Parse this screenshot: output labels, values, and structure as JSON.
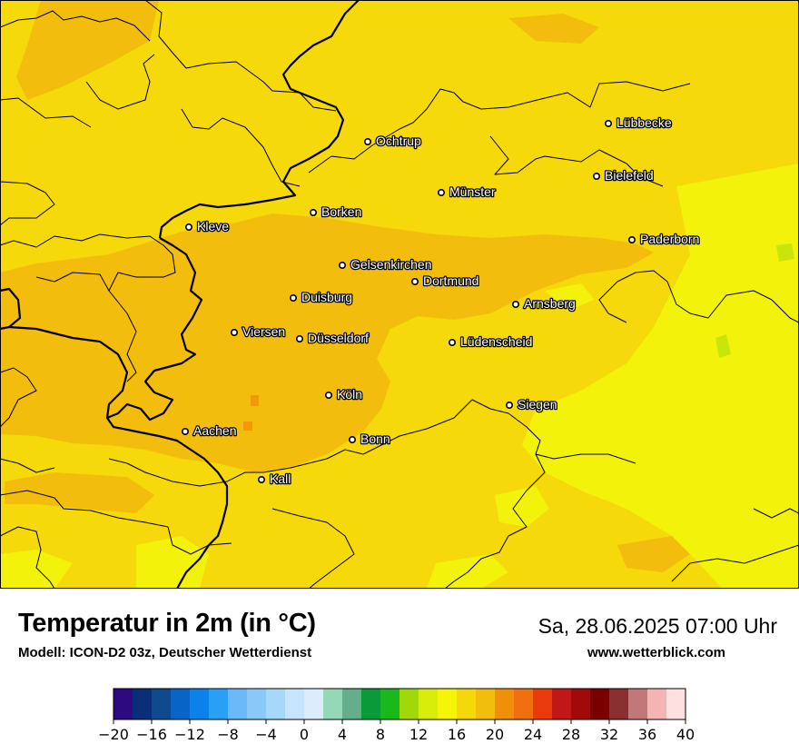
{
  "map": {
    "title": "Temperatur in 2m (in °C)",
    "model": "Modell: ICON-D2 03z, Deutscher Wetterdienst",
    "datetime": "Sa, 28.06.2025 07:00 Uhr",
    "website": "www.wetterblick.com",
    "colors": {
      "base": "#f5d90a",
      "warm": "#f2bd0c",
      "cool": "#f2f20a",
      "border": "#000000"
    },
    "cities": [
      {
        "name": "Lübbecke"
      },
      {
        "name": "Ochtrup"
      },
      {
        "name": "Bielefeld"
      },
      {
        "name": "Münster"
      },
      {
        "name": "Borken"
      },
      {
        "name": "Kleve"
      },
      {
        "name": "Paderborn"
      },
      {
        "name": "Gelsenkirchen"
      },
      {
        "name": "Dortmund"
      },
      {
        "name": "Duisburg"
      },
      {
        "name": "Arnsberg"
      },
      {
        "name": "Viersen"
      },
      {
        "name": "Düsseldorf"
      },
      {
        "name": "Lüdenscheid"
      },
      {
        "name": "Köln"
      },
      {
        "name": "Siegen"
      },
      {
        "name": "Aachen"
      },
      {
        "name": "Bonn"
      },
      {
        "name": "Kall"
      }
    ],
    "legend": {
      "min": -20,
      "max": 40,
      "ticks": [
        "−20",
        "−16",
        "−12",
        "−8",
        "−4",
        "0",
        "4",
        "8",
        "12",
        "16",
        "20",
        "24",
        "28",
        "32",
        "36",
        "40"
      ],
      "colors": [
        "#2e0a80",
        "#0a2e7a",
        "#0f4a8c",
        "#0a64c8",
        "#0a82ea",
        "#2aa0f5",
        "#6ab8f7",
        "#8ac8f8",
        "#a6d8fa",
        "#c6e4fb",
        "#dcecfc",
        "#94d8b8",
        "#64ae8a",
        "#0a9a3a",
        "#1ab81a",
        "#a0d80a",
        "#d8ec0a",
        "#f5f50a",
        "#f5d80a",
        "#f2be0c",
        "#f0900a",
        "#f07010",
        "#e83a0a",
        "#c01818",
        "#a00a0a",
        "#7a0000",
        "#8a3030",
        "#c07878",
        "#f5b4b4",
        "#ffe0e0"
      ]
    }
  }
}
